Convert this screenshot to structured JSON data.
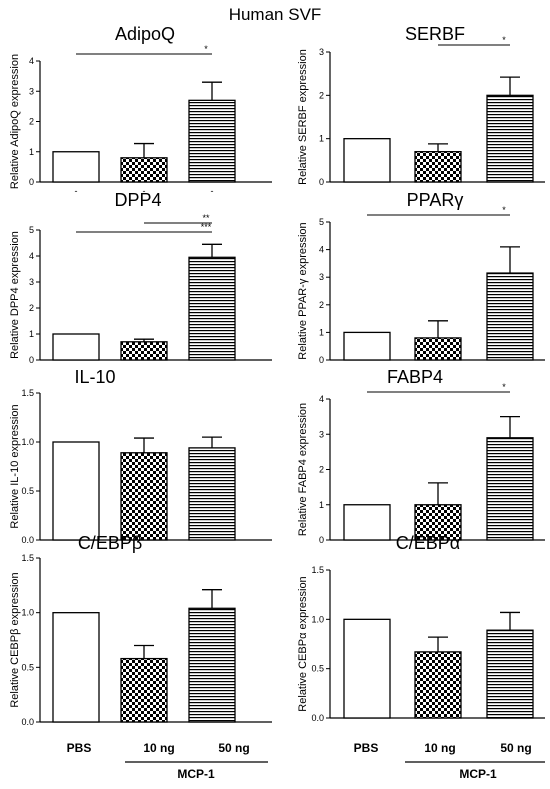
{
  "figure_title": "Human SVF",
  "x_labels": {
    "pbs": "PBS",
    "ten": "10 ng",
    "fifty": "50 ng",
    "group": "MCP-1"
  },
  "colors": {
    "bar_edge": "#000000",
    "fill": "#ffffff"
  },
  "chart_data": [
    {
      "type": "bar",
      "title": "AdipoQ",
      "ylabel": "Relative AdipoQ expression",
      "categories": [
        "PBS",
        "10 ng",
        "50 ng"
      ],
      "values": [
        1.0,
        0.8,
        2.7
      ],
      "errors": [
        0,
        0.47,
        0.6
      ],
      "ylim": [
        0,
        4
      ],
      "yticks": [
        "0",
        "1",
        "2",
        "3",
        "4"
      ],
      "x_tick_labels": [
        "-",
        "-",
        "-"
      ],
      "significance": [
        {
          "from": 0,
          "to": 2,
          "label": "*"
        }
      ]
    },
    {
      "type": "bar",
      "title": "SERBF",
      "ylabel": "Relative SERBF expression",
      "categories": [
        "PBS",
        "10 ng",
        "50 ng"
      ],
      "values": [
        1.0,
        0.7,
        2.0
      ],
      "errors": [
        0,
        0.18,
        0.42
      ],
      "ylim": [
        0,
        3
      ],
      "yticks": [
        "0",
        "1",
        "2",
        "3"
      ],
      "x_tick_labels": [
        "",
        "",
        ""
      ],
      "significance": [
        {
          "from": 1,
          "to": 2,
          "label": "*"
        }
      ]
    },
    {
      "type": "bar",
      "title": "DPP4",
      "ylabel": "Relative DPP4 expression",
      "categories": [
        "PBS",
        "10 ng",
        "50 ng"
      ],
      "values": [
        1.0,
        0.7,
        3.95
      ],
      "errors": [
        0,
        0.1,
        0.5
      ],
      "ylim": [
        0,
        5
      ],
      "yticks": [
        "0",
        "1",
        "2",
        "3",
        "4",
        "5"
      ],
      "x_tick_labels": [
        "",
        "",
        ""
      ],
      "significance": [
        {
          "from": 1,
          "to": 2,
          "label": "**"
        },
        {
          "from": 0,
          "to": 2,
          "label": "***"
        }
      ]
    },
    {
      "type": "bar",
      "title": "PPARγ",
      "ylabel": "Relative PPAR-γ expression",
      "categories": [
        "PBS",
        "10 ng",
        "50 ng"
      ],
      "values": [
        1.0,
        0.8,
        3.15
      ],
      "errors": [
        0,
        0.62,
        0.95
      ],
      "ylim": [
        0,
        5
      ],
      "yticks": [
        "0",
        "1",
        "2",
        "3",
        "4",
        "5"
      ],
      "x_tick_labels": [
        "",
        "",
        ""
      ],
      "significance": [
        {
          "from": 0,
          "to": 2,
          "label": "*"
        }
      ]
    },
    {
      "type": "bar",
      "title": "IL-10",
      "ylabel": "Relative IL-10 expression",
      "categories": [
        "PBS",
        "10 ng",
        "50 ng"
      ],
      "values": [
        1.0,
        0.89,
        0.94
      ],
      "errors": [
        0,
        0.15,
        0.11
      ],
      "ylim": [
        0,
        1.5
      ],
      "yticks": [
        "0.0",
        "0.5",
        "1.0",
        "1.5"
      ],
      "x_tick_labels": [
        "",
        "",
        ""
      ],
      "significance": []
    },
    {
      "type": "bar",
      "title": "FABP4",
      "ylabel": "Relative FABP4 expression",
      "categories": [
        "PBS",
        "10 ng",
        "50 ng"
      ],
      "values": [
        1.0,
        1.0,
        2.9
      ],
      "errors": [
        0,
        0.62,
        0.6
      ],
      "ylim": [
        0,
        4
      ],
      "yticks": [
        "0",
        "1",
        "2",
        "3",
        "4"
      ],
      "x_tick_labels": [
        "",
        "",
        ""
      ],
      "significance": [
        {
          "from": 0,
          "to": 2,
          "label": "*"
        }
      ]
    },
    {
      "type": "bar",
      "title": "C/EBPβ",
      "ylabel": "Relative CEBPβ expression",
      "categories": [
        "PBS",
        "10 ng",
        "50 ng"
      ],
      "values": [
        1.0,
        0.58,
        1.04
      ],
      "errors": [
        0,
        0.12,
        0.17
      ],
      "ylim": [
        0,
        1.5
      ],
      "yticks": [
        "0.0",
        "0.5",
        "1.0",
        "1.5"
      ],
      "x_tick_labels": [
        "",
        "",
        ""
      ],
      "significance": []
    },
    {
      "type": "bar",
      "title": "C/EBPα",
      "ylabel": "Relative CEBPα expression",
      "categories": [
        "PBS",
        "10 ng",
        "50 ng"
      ],
      "values": [
        1.0,
        0.67,
        0.89
      ],
      "errors": [
        0,
        0.15,
        0.18
      ],
      "ylim": [
        0,
        1.5
      ],
      "yticks": [
        "0.0",
        "0.5",
        "1.0",
        "1.5"
      ],
      "x_tick_labels": [
        "",
        "",
        ""
      ],
      "significance": []
    }
  ]
}
